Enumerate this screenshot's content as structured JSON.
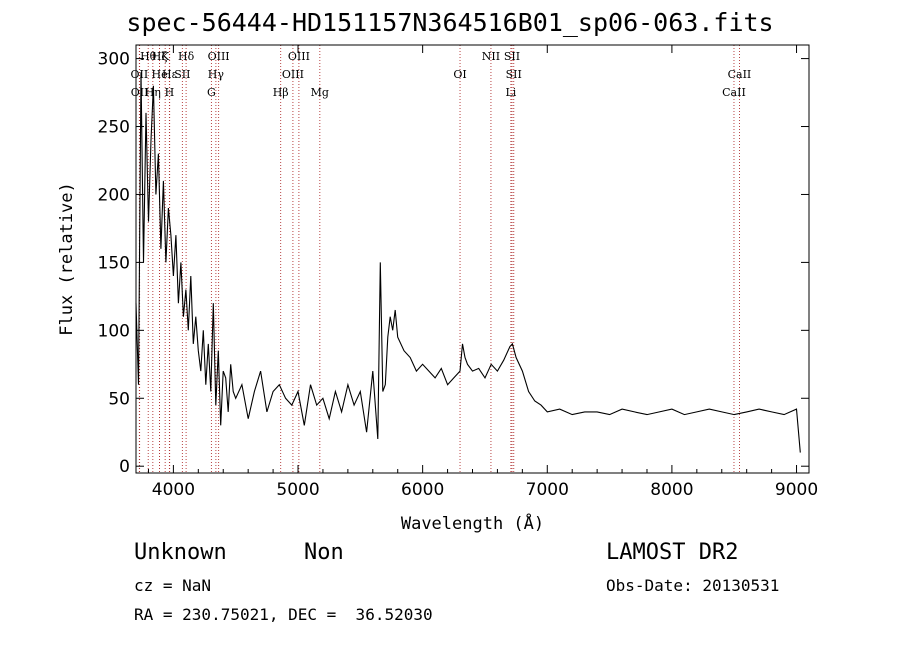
{
  "title": "spec-56444-HD151157N364516B01_sp06-063.fits",
  "info": {
    "object_class": "Unknown",
    "object_subclass": "Non",
    "survey": "LAMOST DR2",
    "cz": "cz = NaN",
    "obs_date": "Obs-Date: 20130531",
    "coords": "RA = 230.75021, DEC =  36.52030"
  },
  "chart_data": {
    "type": "line",
    "title": "spec-56444-HD151157N364516B01_sp06-063.fits",
    "xlabel": "Wavelength (Å)",
    "ylabel": "Flux (relative)",
    "xlim": [
      3700,
      9100
    ],
    "ylim": [
      -5,
      310
    ],
    "xticks": [
      4000,
      5000,
      6000,
      7000,
      8000,
      9000
    ],
    "yticks": [
      0,
      50,
      100,
      150,
      200,
      250,
      300
    ],
    "grid": false,
    "series_color": "#000000",
    "line_marker_color": "#b03030",
    "line_markers": [
      {
        "name": "OII",
        "x": 3727,
        "row": 1
      },
      {
        "name": "OII",
        "x": 3729,
        "row": 2
      },
      {
        "name": "Hθ",
        "x": 3798,
        "row": 0
      },
      {
        "name": "Hη",
        "x": 3835,
        "row": 2
      },
      {
        "name": "He",
        "x": 3889,
        "row": 1
      },
      {
        "name": "Hζ",
        "x": 3889,
        "row": 0
      },
      {
        "name": "K",
        "x": 3934,
        "row": 0
      },
      {
        "name": "H",
        "x": 3968,
        "row": 2
      },
      {
        "name": "Hε",
        "x": 3970,
        "row": 1
      },
      {
        "name": "SII",
        "x": 4072,
        "row": 1
      },
      {
        "name": "Hδ",
        "x": 4102,
        "row": 0
      },
      {
        "name": "G",
        "x": 4305,
        "row": 2
      },
      {
        "name": "Hγ",
        "x": 4341,
        "row": 1
      },
      {
        "name": "OIII",
        "x": 4363,
        "row": 0
      },
      {
        "name": "Hβ",
        "x": 4861,
        "row": 2
      },
      {
        "name": "OIII",
        "x": 4959,
        "row": 1
      },
      {
        "name": "OIII",
        "x": 5007,
        "row": 0
      },
      {
        "name": "Mg",
        "x": 5175,
        "row": 2
      },
      {
        "name": "OI",
        "x": 6300,
        "row": 1
      },
      {
        "name": "NII",
        "x": 6548,
        "row": 0
      },
      {
        "name": "SII",
        "x": 6717,
        "row": 0
      },
      {
        "name": "SII",
        "x": 6731,
        "row": 1
      },
      {
        "name": "Li",
        "x": 6708,
        "row": 2
      },
      {
        "name": "CaII",
        "x": 8498,
        "row": 2
      },
      {
        "name": "CaII",
        "x": 8542,
        "row": 1
      }
    ],
    "series": [
      {
        "x": [
          3700,
          3720,
          3740,
          3760,
          3780,
          3800,
          3820,
          3840,
          3860,
          3880,
          3900,
          3920,
          3940,
          3960,
          3980,
          4000,
          4020,
          4040,
          4060,
          4080,
          4100,
          4120,
          4140,
          4160,
          4180,
          4200,
          4220,
          4240,
          4260,
          4280,
          4300,
          4320,
          4340,
          4360,
          4380,
          4400,
          4420,
          4440,
          4460,
          4480,
          4500,
          4550,
          4600,
          4650,
          4700,
          4750,
          4800,
          4850,
          4900,
          4950,
          5000,
          5050,
          5100,
          5150,
          5200,
          5250,
          5300,
          5350,
          5400,
          5450,
          5500,
          5550,
          5600,
          5640,
          5660,
          5680,
          5700,
          5720,
          5740,
          5760,
          5780,
          5800,
          5850,
          5900,
          5950,
          6000,
          6050,
          6100,
          6150,
          6200,
          6250,
          6300,
          6320,
          6340,
          6360,
          6400,
          6450,
          6500,
          6550,
          6600,
          6650,
          6700,
          6720,
          6750,
          6800,
          6850,
          6900,
          6950,
          7000,
          7100,
          7200,
          7300,
          7400,
          7500,
          7600,
          7700,
          7800,
          7900,
          8000,
          8100,
          8200,
          8300,
          8400,
          8500,
          8600,
          8700,
          8800,
          8900,
          9000,
          9030
        ],
        "y": [
          120,
          60,
          290,
          150,
          260,
          180,
          240,
          280,
          200,
          230,
          160,
          210,
          150,
          190,
          170,
          140,
          170,
          120,
          150,
          110,
          130,
          100,
          140,
          90,
          110,
          85,
          70,
          100,
          60,
          90,
          55,
          120,
          45,
          85,
          30,
          70,
          65,
          40,
          75,
          55,
          50,
          60,
          35,
          55,
          70,
          40,
          55,
          60,
          50,
          45,
          55,
          30,
          60,
          45,
          50,
          35,
          55,
          40,
          60,
          45,
          55,
          25,
          70,
          20,
          150,
          55,
          60,
          95,
          110,
          100,
          115,
          95,
          85,
          80,
          70,
          75,
          70,
          65,
          72,
          60,
          65,
          70,
          90,
          80,
          75,
          70,
          72,
          65,
          75,
          70,
          78,
          88,
          90,
          80,
          70,
          55,
          48,
          45,
          40,
          42,
          38,
          40,
          40,
          38,
          42,
          40,
          38,
          40,
          42,
          38,
          40,
          42,
          40,
          38,
          40,
          42,
          40,
          38,
          42,
          10
        ]
      }
    ]
  }
}
